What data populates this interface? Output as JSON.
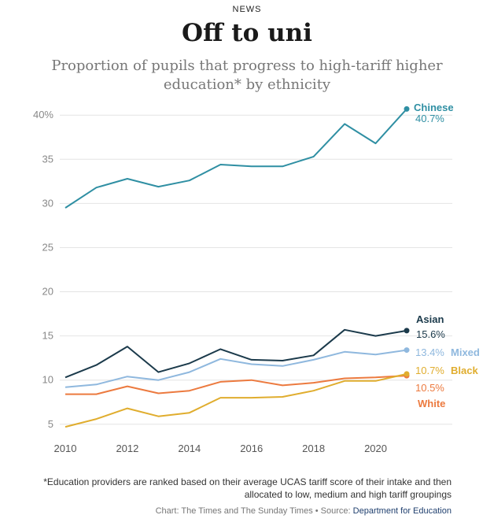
{
  "header": {
    "kicker": "NEWS",
    "title": "Off to uni",
    "subtitle": "Proportion of pupils that progress to high-tariff higher education* by ethnicity"
  },
  "footer": {
    "footnote": "*Education providers are ranked based on their average UCAS tariff score of their intake and then allocated to low, medium and high tariff groupings",
    "credit_prefix": "Chart: The Times and The Sunday Times • Source: ",
    "credit_source": "Department for Education"
  },
  "chart_data": {
    "type": "line",
    "x": [
      2010,
      2011,
      2012,
      2013,
      2014,
      2015,
      2016,
      2017,
      2018,
      2019,
      2020,
      2021
    ],
    "xlim": [
      2010,
      2021
    ],
    "ylim": [
      4,
      41
    ],
    "x_ticks": [
      2010,
      2012,
      2014,
      2016,
      2018,
      2020
    ],
    "y_ticks": [
      {
        "value": 5,
        "label": "5"
      },
      {
        "value": 10,
        "label": "10"
      },
      {
        "value": 15,
        "label": "15"
      },
      {
        "value": 20,
        "label": "20"
      },
      {
        "value": 25,
        "label": "25"
      },
      {
        "value": 30,
        "label": "30"
      },
      {
        "value": 35,
        "label": "35"
      },
      {
        "value": 40,
        "label": "40%"
      }
    ],
    "grid": true,
    "series": [
      {
        "name": "Chinese",
        "color": "#2f8fa3",
        "end_label": "40.7%",
        "values": [
          29.5,
          31.8,
          32.8,
          31.9,
          32.6,
          34.4,
          34.2,
          34.2,
          35.3,
          39.0,
          36.8,
          40.7
        ]
      },
      {
        "name": "Asian",
        "color": "#1b3a4b",
        "end_label": "15.6%",
        "values": [
          10.3,
          11.7,
          13.8,
          10.9,
          11.9,
          13.5,
          12.3,
          12.2,
          12.8,
          15.7,
          15.0,
          15.6
        ]
      },
      {
        "name": "Mixed",
        "color": "#8fb8de",
        "end_label": "13.4%",
        "values": [
          9.2,
          9.5,
          10.4,
          10.0,
          10.9,
          12.4,
          11.8,
          11.6,
          12.3,
          13.2,
          12.9,
          13.4
        ]
      },
      {
        "name": "White",
        "color": "#ec7a3f",
        "end_label": "10.5%",
        "values": [
          8.4,
          8.4,
          9.3,
          8.5,
          8.8,
          9.8,
          10.0,
          9.4,
          9.7,
          10.2,
          10.3,
          10.5
        ]
      },
      {
        "name": "Black",
        "color": "#e0ad2e",
        "end_label": "10.7%",
        "values": [
          4.7,
          5.6,
          6.8,
          5.9,
          6.3,
          8.0,
          8.0,
          8.1,
          8.8,
          9.9,
          9.9,
          10.7
        ]
      }
    ]
  }
}
